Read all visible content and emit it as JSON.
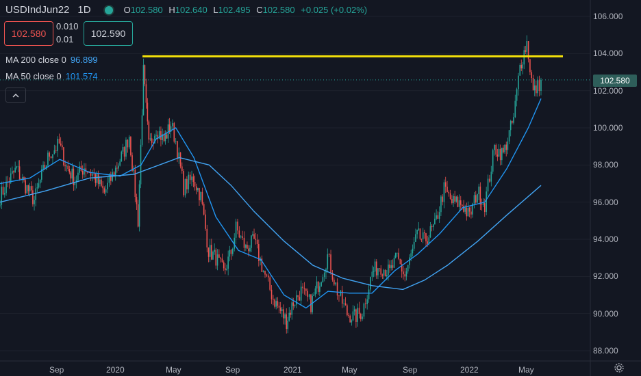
{
  "header": {
    "symbol": "USDIndJun22",
    "interval": "1D",
    "ohlc": [
      {
        "key": "O",
        "value": "102.580"
      },
      {
        "key": "H",
        "value": "102.640"
      },
      {
        "key": "L",
        "value": "102.495"
      },
      {
        "key": "C",
        "value": "102.580"
      }
    ],
    "change": "+0.025 (+0.02%)"
  },
  "trade": {
    "sell_price": "102.580",
    "buy_price": "102.590",
    "spread_top": "0.010",
    "spread_bottom": "0.01"
  },
  "indicators": [
    {
      "label": "MA 200 close 0",
      "value": "96.899",
      "color": "#42a5f5"
    },
    {
      "label": "MA 50 close 0",
      "value": "101.574",
      "color": "#2196f3"
    }
  ],
  "price_axis": {
    "ticks": [
      "106.000",
      "104.000",
      "102.000",
      "100.000",
      "98.000",
      "96.000",
      "94.000",
      "92.000",
      "90.000",
      "88.000"
    ],
    "last_price": "102.580"
  },
  "time_axis": {
    "ticks": [
      "Sep",
      "2020",
      "May",
      "Sep",
      "2021",
      "May",
      "Sep",
      "2022",
      "May"
    ]
  },
  "colors": {
    "up": "#26a69a",
    "down": "#ef5350",
    "horizontal_line": "#f5e30a",
    "background": "#131722"
  },
  "chart_data": {
    "type": "candlestick",
    "horizontal_line_level": 103.85,
    "ylim": [
      88,
      106
    ],
    "x_range": [
      "2019-06-01",
      "2022-06-10"
    ],
    "series": [
      {
        "name": "USDIndJun22",
        "points": [
          {
            "t": "2019-06-01",
            "v": 96.3
          },
          {
            "t": "2019-06-20",
            "v": 97.2
          },
          {
            "t": "2019-07-05",
            "v": 97.8
          },
          {
            "t": "2019-07-20",
            "v": 97.0
          },
          {
            "t": "2019-08-10",
            "v": 96.1
          },
          {
            "t": "2019-08-25",
            "v": 97.4
          },
          {
            "t": "2019-09-10",
            "v": 98.6
          },
          {
            "t": "2019-09-30",
            "v": 99.1
          },
          {
            "t": "2019-10-15",
            "v": 97.9
          },
          {
            "t": "2019-11-01",
            "v": 97.2
          },
          {
            "t": "2019-11-20",
            "v": 97.9
          },
          {
            "t": "2019-12-10",
            "v": 97.4
          },
          {
            "t": "2019-12-31",
            "v": 96.5
          },
          {
            "t": "2020-01-20",
            "v": 97.6
          },
          {
            "t": "2020-02-10",
            "v": 98.8
          },
          {
            "t": "2020-02-20",
            "v": 99.6
          },
          {
            "t": "2020-03-09",
            "v": 95.0
          },
          {
            "t": "2020-03-20",
            "v": 103.0
          },
          {
            "t": "2020-03-31",
            "v": 99.0
          },
          {
            "t": "2020-04-15",
            "v": 100.0
          },
          {
            "t": "2020-05-01",
            "v": 99.3
          },
          {
            "t": "2020-05-15",
            "v": 100.2
          },
          {
            "t": "2020-05-25",
            "v": 99.3
          },
          {
            "t": "2020-06-10",
            "v": 96.8
          },
          {
            "t": "2020-06-30",
            "v": 97.3
          },
          {
            "t": "2020-07-15",
            "v": 96.3
          },
          {
            "t": "2020-07-31",
            "v": 93.4
          },
          {
            "t": "2020-08-15",
            "v": 93.0
          },
          {
            "t": "2020-08-31",
            "v": 92.2
          },
          {
            "t": "2020-09-15",
            "v": 93.3
          },
          {
            "t": "2020-09-25",
            "v": 94.6
          },
          {
            "t": "2020-10-15",
            "v": 93.5
          },
          {
            "t": "2020-11-01",
            "v": 93.9
          },
          {
            "t": "2020-11-20",
            "v": 92.3
          },
          {
            "t": "2020-12-10",
            "v": 90.8
          },
          {
            "t": "2021-01-06",
            "v": 89.6
          },
          {
            "t": "2021-01-20",
            "v": 90.6
          },
          {
            "t": "2021-02-05",
            "v": 91.2
          },
          {
            "t": "2021-02-25",
            "v": 90.5
          },
          {
            "t": "2021-03-15",
            "v": 91.8
          },
          {
            "t": "2021-03-31",
            "v": 93.1
          },
          {
            "t": "2021-04-20",
            "v": 91.2
          },
          {
            "t": "2021-05-10",
            "v": 90.0
          },
          {
            "t": "2021-05-25",
            "v": 89.8
          },
          {
            "t": "2021-06-10",
            "v": 90.1
          },
          {
            "t": "2021-06-30",
            "v": 92.2
          },
          {
            "t": "2021-07-15",
            "v": 92.6
          },
          {
            "t": "2021-08-05",
            "v": 92.2
          },
          {
            "t": "2021-08-20",
            "v": 93.0
          },
          {
            "t": "2021-09-05",
            "v": 92.0
          },
          {
            "t": "2021-09-30",
            "v": 94.2
          },
          {
            "t": "2021-10-15",
            "v": 93.9
          },
          {
            "t": "2021-11-05",
            "v": 94.7
          },
          {
            "t": "2021-11-24",
            "v": 96.7
          },
          {
            "t": "2021-12-10",
            "v": 96.0
          },
          {
            "t": "2021-12-31",
            "v": 95.9
          },
          {
            "t": "2022-01-15",
            "v": 95.2
          },
          {
            "t": "2022-01-31",
            "v": 96.6
          },
          {
            "t": "2022-02-15",
            "v": 95.9
          },
          {
            "t": "2022-03-07",
            "v": 98.9
          },
          {
            "t": "2022-03-25",
            "v": 98.6
          },
          {
            "t": "2022-04-15",
            "v": 100.5
          },
          {
            "t": "2022-04-28",
            "v": 103.3
          },
          {
            "t": "2022-05-12",
            "v": 104.6
          },
          {
            "t": "2022-05-25",
            "v": 101.9
          },
          {
            "t": "2022-06-03",
            "v": 102.2
          },
          {
            "t": "2022-06-10",
            "v": 102.58
          }
        ]
      },
      {
        "name": "MA 50 close 0",
        "points": [
          {
            "t": "2019-06-01",
            "v": 97.0
          },
          {
            "t": "2019-08-01",
            "v": 97.3
          },
          {
            "t": "2019-10-01",
            "v": 98.3
          },
          {
            "t": "2019-12-01",
            "v": 97.6
          },
          {
            "t": "2020-02-01",
            "v": 97.4
          },
          {
            "t": "2020-03-15",
            "v": 98.0
          },
          {
            "t": "2020-04-15",
            "v": 99.4
          },
          {
            "t": "2020-05-25",
            "v": 100.0
          },
          {
            "t": "2020-07-01",
            "v": 98.4
          },
          {
            "t": "2020-08-15",
            "v": 95.2
          },
          {
            "t": "2020-09-30",
            "v": 93.4
          },
          {
            "t": "2020-11-15",
            "v": 92.9
          },
          {
            "t": "2021-01-01",
            "v": 91.0
          },
          {
            "t": "2021-02-15",
            "v": 90.3
          },
          {
            "t": "2021-04-01",
            "v": 91.2
          },
          {
            "t": "2021-05-15",
            "v": 91.1
          },
          {
            "t": "2021-06-30",
            "v": 91.1
          },
          {
            "t": "2021-08-15",
            "v": 92.3
          },
          {
            "t": "2021-10-01",
            "v": 93.2
          },
          {
            "t": "2021-11-15",
            "v": 94.3
          },
          {
            "t": "2022-01-01",
            "v": 95.7
          },
          {
            "t": "2022-02-15",
            "v": 96.0
          },
          {
            "t": "2022-04-01",
            "v": 97.8
          },
          {
            "t": "2022-05-15",
            "v": 100.0
          },
          {
            "t": "2022-06-10",
            "v": 101.574
          }
        ]
      },
      {
        "name": "MA 200 close 0",
        "points": [
          {
            "t": "2019-06-01",
            "v": 96.0
          },
          {
            "t": "2019-09-01",
            "v": 96.6
          },
          {
            "t": "2019-12-01",
            "v": 97.3
          },
          {
            "t": "2020-03-01",
            "v": 97.5
          },
          {
            "t": "2020-06-01",
            "v": 98.4
          },
          {
            "t": "2020-08-01",
            "v": 98.0
          },
          {
            "t": "2020-09-15",
            "v": 96.9
          },
          {
            "t": "2020-11-01",
            "v": 95.5
          },
          {
            "t": "2021-01-01",
            "v": 93.9
          },
          {
            "t": "2021-03-01",
            "v": 92.6
          },
          {
            "t": "2021-05-01",
            "v": 91.9
          },
          {
            "t": "2021-07-01",
            "v": 91.5
          },
          {
            "t": "2021-09-01",
            "v": 91.3
          },
          {
            "t": "2021-10-15",
            "v": 91.8
          },
          {
            "t": "2021-12-01",
            "v": 92.6
          },
          {
            "t": "2022-02-01",
            "v": 93.9
          },
          {
            "t": "2022-04-01",
            "v": 95.3
          },
          {
            "t": "2022-06-10",
            "v": 96.899
          }
        ]
      }
    ]
  }
}
